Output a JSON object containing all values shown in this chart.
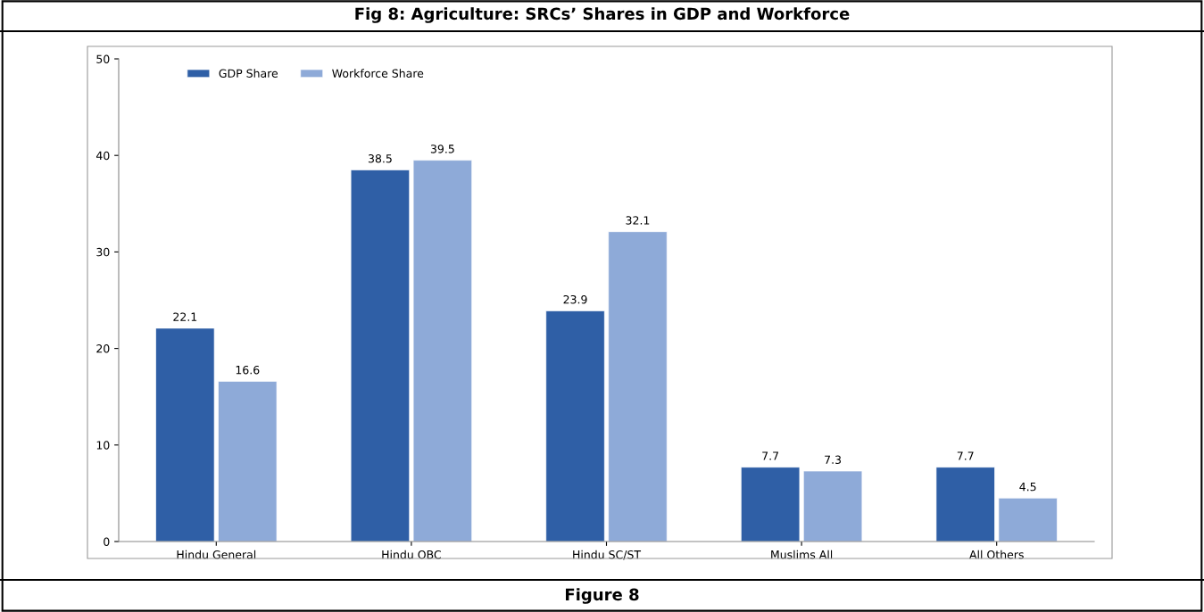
{
  "chart_data": {
    "type": "bar",
    "title": "Fig 8: Agriculture: SRCs’ Shares in GDP and Workforce",
    "categories": [
      "Hindu General",
      "Hindu OBC",
      "Hindu SC/ST",
      "Muslims All",
      "All Others"
    ],
    "series": [
      {
        "name": "GDP Share",
        "color": "#2f5fa6",
        "values": [
          22.1,
          38.5,
          23.9,
          7.7,
          7.7
        ]
      },
      {
        "name": "Workforce Share",
        "color": "#8eaad8",
        "values": [
          16.6,
          39.5,
          32.1,
          7.3,
          4.5
        ]
      }
    ],
    "ylim": [
      0,
      50
    ],
    "yticks": [
      0,
      10,
      20,
      30,
      40,
      50
    ],
    "grid": false,
    "legend": "top left",
    "data_labels": true,
    "annotations": [
      "Figure 8"
    ]
  }
}
